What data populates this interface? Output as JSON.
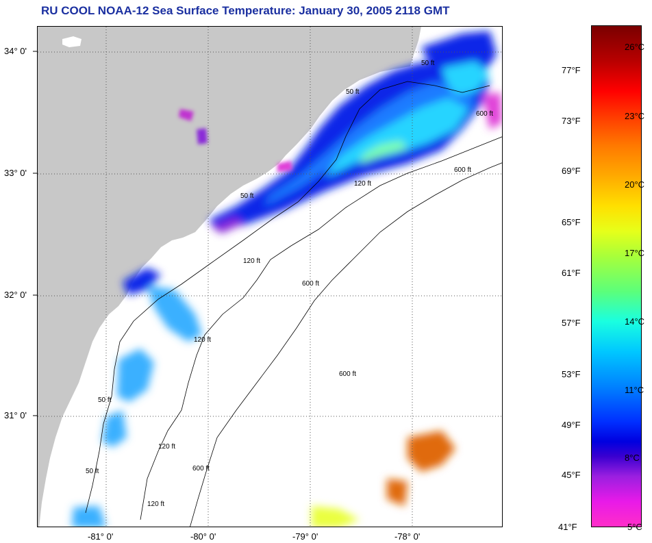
{
  "title": "RU COOL  NOAA-12  Sea Surface Temperature:  January 30, 2005 2118 GMT",
  "map": {
    "lat_labels": [
      "34° 0'",
      "33° 0'",
      "32° 0'",
      "31° 0'"
    ],
    "lon_labels": [
      "-81° 0'",
      "-80° 0'",
      "-79° 0'",
      "-78° 0'"
    ],
    "isobath_labels": [
      "50 ft",
      "50 ft",
      "50 ft",
      "50 ft",
      "50 ft",
      "120 ft",
      "120 ft",
      "120 ft",
      "120 ft",
      "120 ft",
      "600 ft",
      "600 ft",
      "600 ft",
      "600 ft",
      "600 ft"
    ],
    "colors": {
      "land": "#c8c8c8",
      "cloud": "#ffffff",
      "grid": "#555555"
    }
  },
  "colorbar": {
    "fahrenheit": [
      "77°F",
      "73°F",
      "69°F",
      "65°F",
      "61°F",
      "57°F",
      "53°F",
      "49°F",
      "45°F",
      "41°F"
    ],
    "celsius": [
      "26°C",
      "23°C",
      "20°C",
      "17°C",
      "14°C",
      "11°C",
      "8°C",
      "5°C"
    ]
  }
}
